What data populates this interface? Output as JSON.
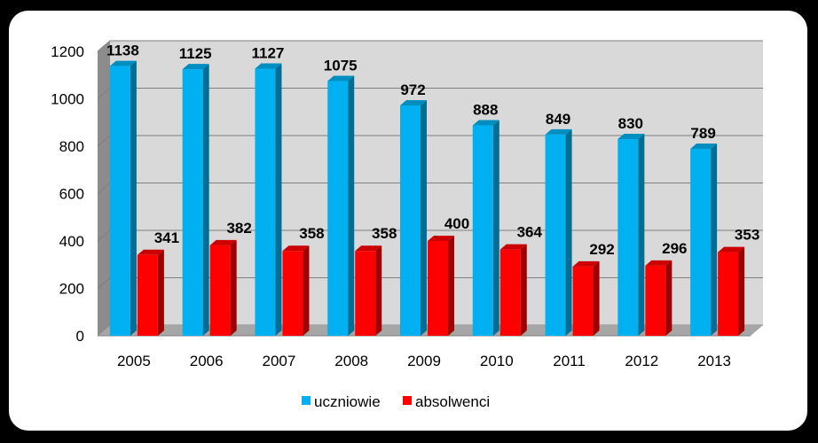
{
  "chart_data": {
    "type": "bar",
    "categories": [
      "2005",
      "2006",
      "2007",
      "2008",
      "2009",
      "2010",
      "2011",
      "2012",
      "2013"
    ],
    "series": [
      {
        "name": "uczniowie",
        "color": "#00B0F0",
        "values": [
          1138,
          1125,
          1127,
          1075,
          972,
          888,
          849,
          830,
          789
        ]
      },
      {
        "name": "absolwenci",
        "color": "#FF0000",
        "values": [
          341,
          382,
          358,
          358,
          400,
          364,
          292,
          296,
          353
        ]
      }
    ],
    "ylim": [
      0,
      1200
    ],
    "yticks": [
      0,
      200,
      400,
      600,
      800,
      1000,
      1200
    ],
    "grid": true,
    "legend": "bottom",
    "style": "3d-column"
  }
}
